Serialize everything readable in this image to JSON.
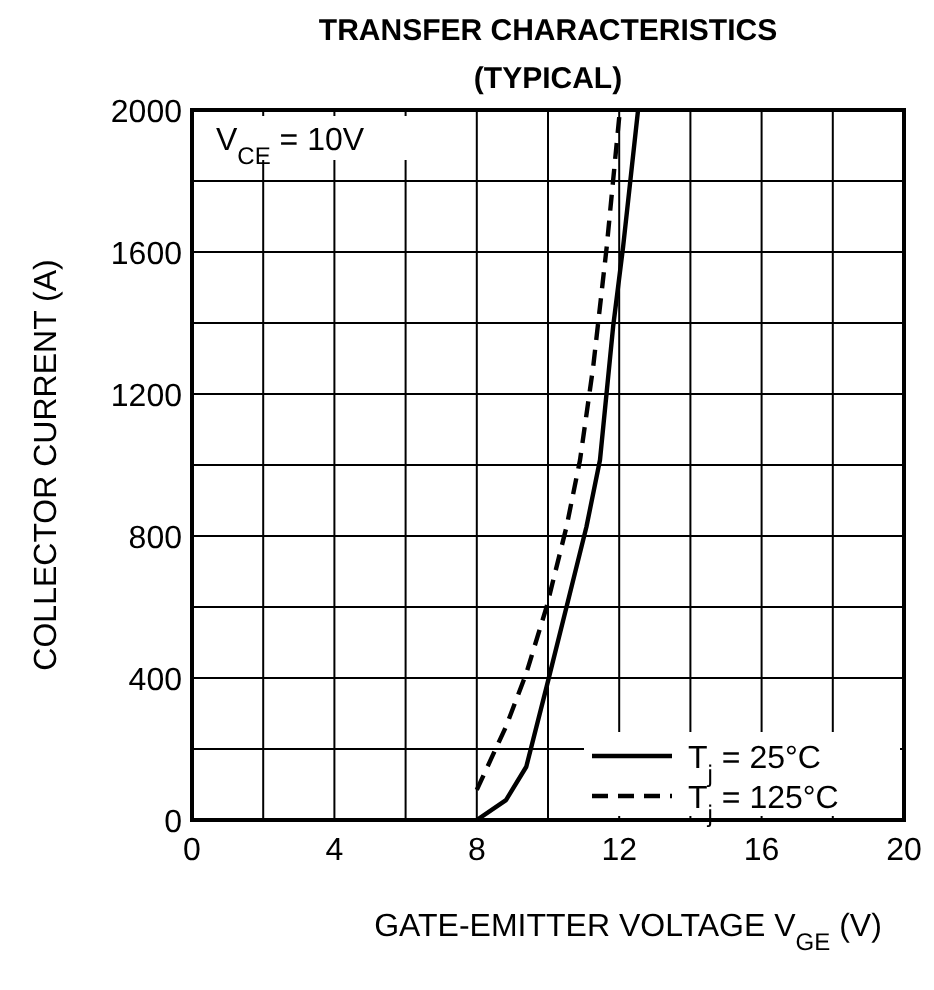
{
  "chart_data": {
    "type": "line",
    "title": "TRANSFER CHARACTERISTICS",
    "subtitle": "(TYPICAL)",
    "xlabel": "GATE-EMITTER VOLTAGE  V$_{GE}$ (V)",
    "ylabel": "COLLECTOR CURRENT (A)",
    "annotations": [
      "V$_{CE}$ = 10V"
    ],
    "xlim": [
      0,
      20
    ],
    "ylim": [
      0,
      2000
    ],
    "xticks": [
      0,
      {
        "value": 2,
        "label": null
      },
      4,
      {
        "value": 6,
        "label": null
      },
      8,
      {
        "value": 10,
        "label": null
      },
      12,
      {
        "value": 14,
        "label": null
      },
      16,
      {
        "value": 18,
        "label": null
      },
      20
    ],
    "yticks": [
      0,
      {
        "value": 200,
        "label": null
      },
      400,
      {
        "value": 600,
        "label": null
      },
      800,
      {
        "value": 1000,
        "label": null
      },
      1200,
      {
        "value": 1400,
        "label": null
      },
      1600,
      {
        "value": 1800,
        "label": null
      },
      2000
    ],
    "grid": true,
    "legend": "bottom right",
    "series": [
      {
        "name": "T$_{j}$ = 25°C",
        "color": "#000000",
        "line_style": "solid",
        "x": [
          8,
          8.82,
          9.39,
          9.96,
          10.52,
          11.08,
          11.46,
          11.83,
          12.11,
          12.53
        ],
        "values": [
          0,
          56,
          150,
          375,
          600,
          826,
          1014,
          1390,
          1615,
          2000
        ]
      },
      {
        "name": "T$_{j}$ = 125°C",
        "color": "#000000",
        "line_style": "dashed",
        "x": [
          8,
          8.82,
          9.39,
          9.96,
          10.52,
          10.9,
          11.27,
          11.65,
          12.02
        ],
        "values": [
          85,
          263,
          413,
          600,
          826,
          1014,
          1277,
          1615,
          2000
        ]
      }
    ]
  }
}
